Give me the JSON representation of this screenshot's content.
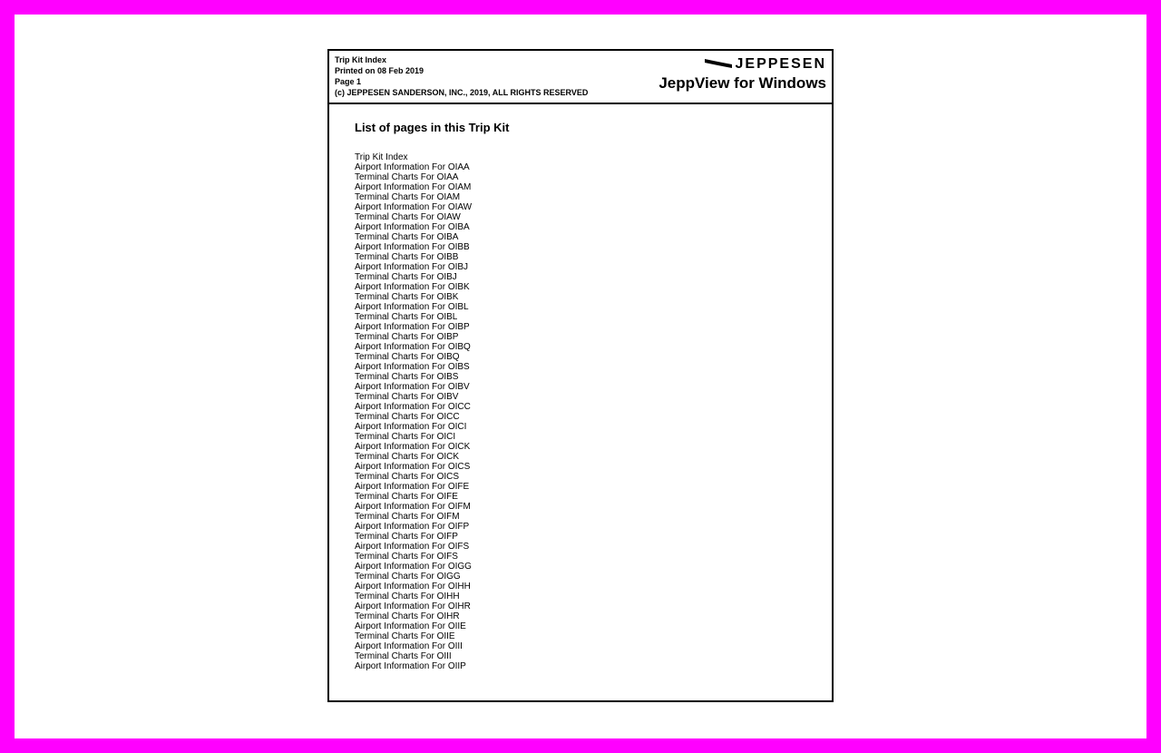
{
  "header": {
    "title": "Trip Kit Index",
    "printed": "Printed on 08 Feb 2019",
    "page": "Page 1",
    "copyright": "(c) JEPPESEN SANDERSON, INC., 2019, ALL RIGHTS RESERVED",
    "brand": "JEPPESEN",
    "product": "JeppView for Windows"
  },
  "content": {
    "section_title": "List of pages in this Trip Kit",
    "pages": [
      "Trip Kit Index",
      "Airport Information For OIAA",
      "Terminal Charts For OIAA",
      "Airport Information For OIAM",
      "Terminal Charts For OIAM",
      "Airport Information For OIAW",
      "Terminal Charts For OIAW",
      "Airport Information For OIBA",
      "Terminal Charts For OIBA",
      "Airport Information For OIBB",
      "Terminal Charts For OIBB",
      "Airport Information For OIBJ",
      "Terminal Charts For OIBJ",
      "Airport Information For OIBK",
      "Terminal Charts For OIBK",
      "Airport Information For OIBL",
      "Terminal Charts For OIBL",
      "Airport Information For OIBP",
      "Terminal Charts For OIBP",
      "Airport Information For OIBQ",
      "Terminal Charts For OIBQ",
      "Airport Information For OIBS",
      "Terminal Charts For OIBS",
      "Airport Information For OIBV",
      "Terminal Charts For OIBV",
      "Airport Information For OICC",
      "Terminal Charts For OICC",
      "Airport Information For OICI",
      "Terminal Charts For OICI",
      "Airport Information For OICK",
      "Terminal Charts For OICK",
      "Airport Information For OICS",
      "Terminal Charts For OICS",
      "Airport Information For OIFE",
      "Terminal Charts For OIFE",
      "Airport Information For OIFM",
      "Terminal Charts For OIFM",
      "Airport Information For OIFP",
      "Terminal Charts For OIFP",
      "Airport Information For OIFS",
      "Terminal Charts For OIFS",
      "Airport Information For OIGG",
      "Terminal Charts For OIGG",
      "Airport Information For OIHH",
      "Terminal Charts For OIHH",
      "Airport Information For OIHR",
      "Terminal Charts For OIHR",
      "Airport Information For OIIE",
      "Terminal Charts For OIIE",
      "Airport Information For OIII",
      "Terminal Charts For OIII",
      "Airport Information For OIIP"
    ]
  },
  "styling": {
    "background_color": "#ff00ff",
    "document_background": "#ffffff",
    "border_color": "#000000",
    "text_color": "#000000",
    "header_fontsize": 9,
    "section_title_fontsize": 13,
    "list_fontsize": 10,
    "brand_fontsize": 16,
    "product_fontsize": 17
  }
}
